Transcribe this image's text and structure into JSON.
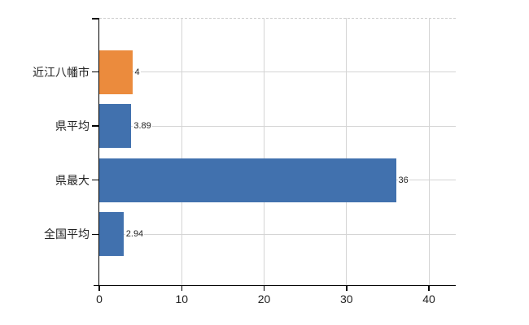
{
  "chart_data": {
    "type": "bar",
    "orientation": "horizontal",
    "title": "",
    "categories": [
      "近江八幡市",
      "県平均",
      "県最大",
      "全国平均"
    ],
    "values": [
      4,
      3.89,
      36,
      2.94
    ],
    "value_labels": [
      "4",
      "3.89",
      "36",
      "2.94"
    ],
    "bar_colors": [
      "#eb8b3d",
      "#4171ae",
      "#4171ae",
      "#4171ae"
    ],
    "x_ticks": [
      0,
      10,
      20,
      30,
      40
    ],
    "x_tick_labels": [
      "0",
      "10",
      "20",
      "30",
      "40"
    ],
    "xlim": [
      0,
      43.3
    ],
    "xlabel": "",
    "ylabel": "",
    "grid": true,
    "legend": false,
    "colors": {
      "axis": "#000000",
      "grid": "#d4d4d4",
      "top_border": "#cccccc",
      "label_text": "#222222",
      "value_text": "#222222",
      "background": "#ffffff"
    }
  }
}
